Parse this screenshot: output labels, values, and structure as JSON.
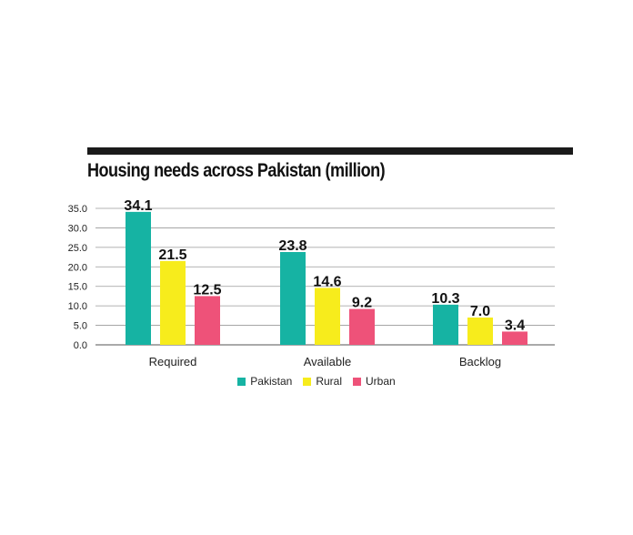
{
  "chart_data": {
    "type": "bar",
    "title": "Housing needs across Pakistan (million)",
    "categories": [
      "Required",
      "Available",
      "Backlog"
    ],
    "series": [
      {
        "name": "Pakistan",
        "color": "#16b3a3",
        "values": [
          34.1,
          23.8,
          10.3
        ],
        "labels": [
          "34.1",
          "23.8",
          "10.3"
        ]
      },
      {
        "name": "Rural",
        "color": "#f7ec1c",
        "values": [
          21.5,
          14.6,
          7.0
        ],
        "labels": [
          "21.5",
          "14.6",
          "7.0"
        ]
      },
      {
        "name": "Urban",
        "color": "#ee5279",
        "values": [
          12.5,
          9.2,
          3.4
        ],
        "labels": [
          "12.5",
          "9.2",
          "3.4"
        ]
      }
    ],
    "yticks": [
      "0.0",
      "5.0",
      "10.0",
      "15.0",
      "20.0",
      "25.0",
      "30.0",
      "35.0"
    ],
    "ylim": [
      0,
      35
    ],
    "xlabel": "",
    "ylabel": "",
    "grid": true,
    "legend_position": "bottom-center"
  }
}
